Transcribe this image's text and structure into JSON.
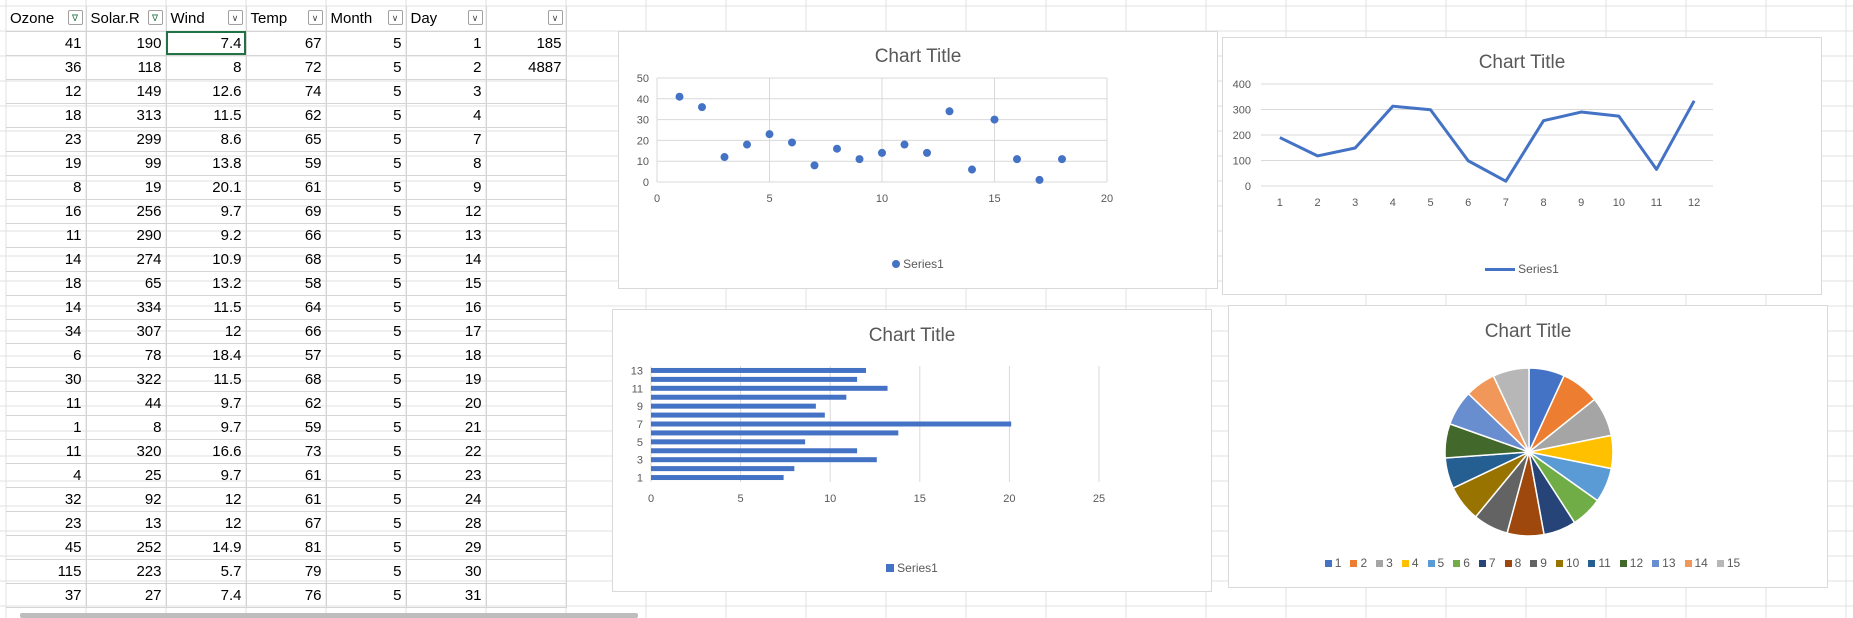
{
  "sheet": {
    "headers": [
      "Ozone",
      "Solar.R",
      "Wind",
      "Temp",
      "Month",
      "Day",
      ""
    ],
    "filtered_columns": [
      0,
      1
    ],
    "rows": [
      [
        "41",
        "190",
        "7.4",
        "67",
        "5",
        "1",
        "185"
      ],
      [
        "36",
        "118",
        "8",
        "72",
        "5",
        "2",
        "4887"
      ],
      [
        "12",
        "149",
        "12.6",
        "74",
        "5",
        "3",
        ""
      ],
      [
        "18",
        "313",
        "11.5",
        "62",
        "5",
        "4",
        ""
      ],
      [
        "23",
        "299",
        "8.6",
        "65",
        "5",
        "7",
        ""
      ],
      [
        "19",
        "99",
        "13.8",
        "59",
        "5",
        "8",
        ""
      ],
      [
        "8",
        "19",
        "20.1",
        "61",
        "5",
        "9",
        ""
      ],
      [
        "16",
        "256",
        "9.7",
        "69",
        "5",
        "12",
        ""
      ],
      [
        "11",
        "290",
        "9.2",
        "66",
        "5",
        "13",
        ""
      ],
      [
        "14",
        "274",
        "10.9",
        "68",
        "5",
        "14",
        ""
      ],
      [
        "18",
        "65",
        "13.2",
        "58",
        "5",
        "15",
        ""
      ],
      [
        "14",
        "334",
        "11.5",
        "64",
        "5",
        "16",
        ""
      ],
      [
        "34",
        "307",
        "12",
        "66",
        "5",
        "17",
        ""
      ],
      [
        "6",
        "78",
        "18.4",
        "57",
        "5",
        "18",
        ""
      ],
      [
        "30",
        "322",
        "11.5",
        "68",
        "5",
        "19",
        ""
      ],
      [
        "11",
        "44",
        "9.7",
        "62",
        "5",
        "20",
        ""
      ],
      [
        "1",
        "8",
        "9.7",
        "59",
        "5",
        "21",
        ""
      ],
      [
        "11",
        "320",
        "16.6",
        "73",
        "5",
        "22",
        ""
      ],
      [
        "4",
        "25",
        "9.7",
        "61",
        "5",
        "23",
        ""
      ],
      [
        "32",
        "92",
        "12",
        "61",
        "5",
        "24",
        ""
      ],
      [
        "23",
        "13",
        "12",
        "67",
        "5",
        "28",
        ""
      ],
      [
        "45",
        "252",
        "14.9",
        "81",
        "5",
        "29",
        ""
      ],
      [
        "115",
        "223",
        "5.7",
        "79",
        "5",
        "30",
        ""
      ]
    ],
    "partial_row": [
      "37",
      "27",
      "7.4",
      "76",
      "5",
      "31",
      ""
    ]
  },
  "chart_data": [
    {
      "type": "scatter",
      "title": "Chart Title",
      "legend": "Series1",
      "legend_position": "bottom",
      "x": [
        1,
        2,
        3,
        4,
        5,
        6,
        7,
        8,
        9,
        10,
        11,
        12,
        13,
        14,
        15,
        16,
        17,
        18
      ],
      "y": [
        41,
        36,
        12,
        18,
        23,
        19,
        8,
        16,
        11,
        14,
        18,
        14,
        34,
        6,
        30,
        11,
        1,
        11
      ],
      "xlim": [
        0,
        20
      ],
      "xticks": [
        0,
        5,
        10,
        15,
        20
      ],
      "ylim": [
        0,
        50
      ],
      "yticks": [
        0,
        10,
        20,
        30,
        40,
        50
      ],
      "grid": true,
      "color": "#4472C4"
    },
    {
      "type": "line",
      "title": "Chart Title",
      "legend": "Series1",
      "legend_position": "bottom",
      "categories": [
        "1",
        "2",
        "3",
        "4",
        "5",
        "6",
        "7",
        "8",
        "9",
        "10",
        "11",
        "12"
      ],
      "values": [
        190,
        118,
        149,
        313,
        299,
        99,
        19,
        256,
        290,
        274,
        65,
        334
      ],
      "ylim": [
        0,
        400
      ],
      "yticks": [
        0,
        100,
        200,
        300,
        400
      ],
      "grid": true,
      "color": "#4472C4"
    },
    {
      "type": "bar",
      "orientation": "horizontal",
      "title": "Chart Title",
      "legend": "Series1",
      "legend_position": "bottom",
      "categories": [
        "1",
        "2",
        "3",
        "4",
        "5",
        "6",
        "7",
        "8",
        "9",
        "10",
        "11",
        "12",
        "13"
      ],
      "category_tick_labels": [
        "1",
        "3",
        "5",
        "7",
        "9",
        "11",
        "13"
      ],
      "values": [
        7.4,
        8,
        12.6,
        11.5,
        8.6,
        13.8,
        20.1,
        9.7,
        9.2,
        10.9,
        13.2,
        11.5,
        12
      ],
      "xlim": [
        0,
        25
      ],
      "xticks": [
        0,
        5,
        10,
        15,
        20,
        25
      ],
      "grid": true,
      "color": "#4472C4"
    },
    {
      "type": "pie",
      "title": "Chart Title",
      "legend_position": "bottom",
      "labels": [
        "1",
        "2",
        "3",
        "4",
        "5",
        "6",
        "7",
        "8",
        "9",
        "10",
        "11",
        "12",
        "13",
        "14",
        "15"
      ],
      "values": [
        67,
        72,
        74,
        62,
        65,
        59,
        61,
        69,
        66,
        68,
        58,
        64,
        66,
        57,
        68
      ],
      "colors": [
        "#4472C4",
        "#ED7D31",
        "#A5A5A5",
        "#FFC000",
        "#5B9BD5",
        "#70AD47",
        "#264478",
        "#9E480E",
        "#636363",
        "#997300",
        "#255E91",
        "#43682B",
        "#698ED0",
        "#F1975A",
        "#B7B7B7"
      ]
    }
  ]
}
